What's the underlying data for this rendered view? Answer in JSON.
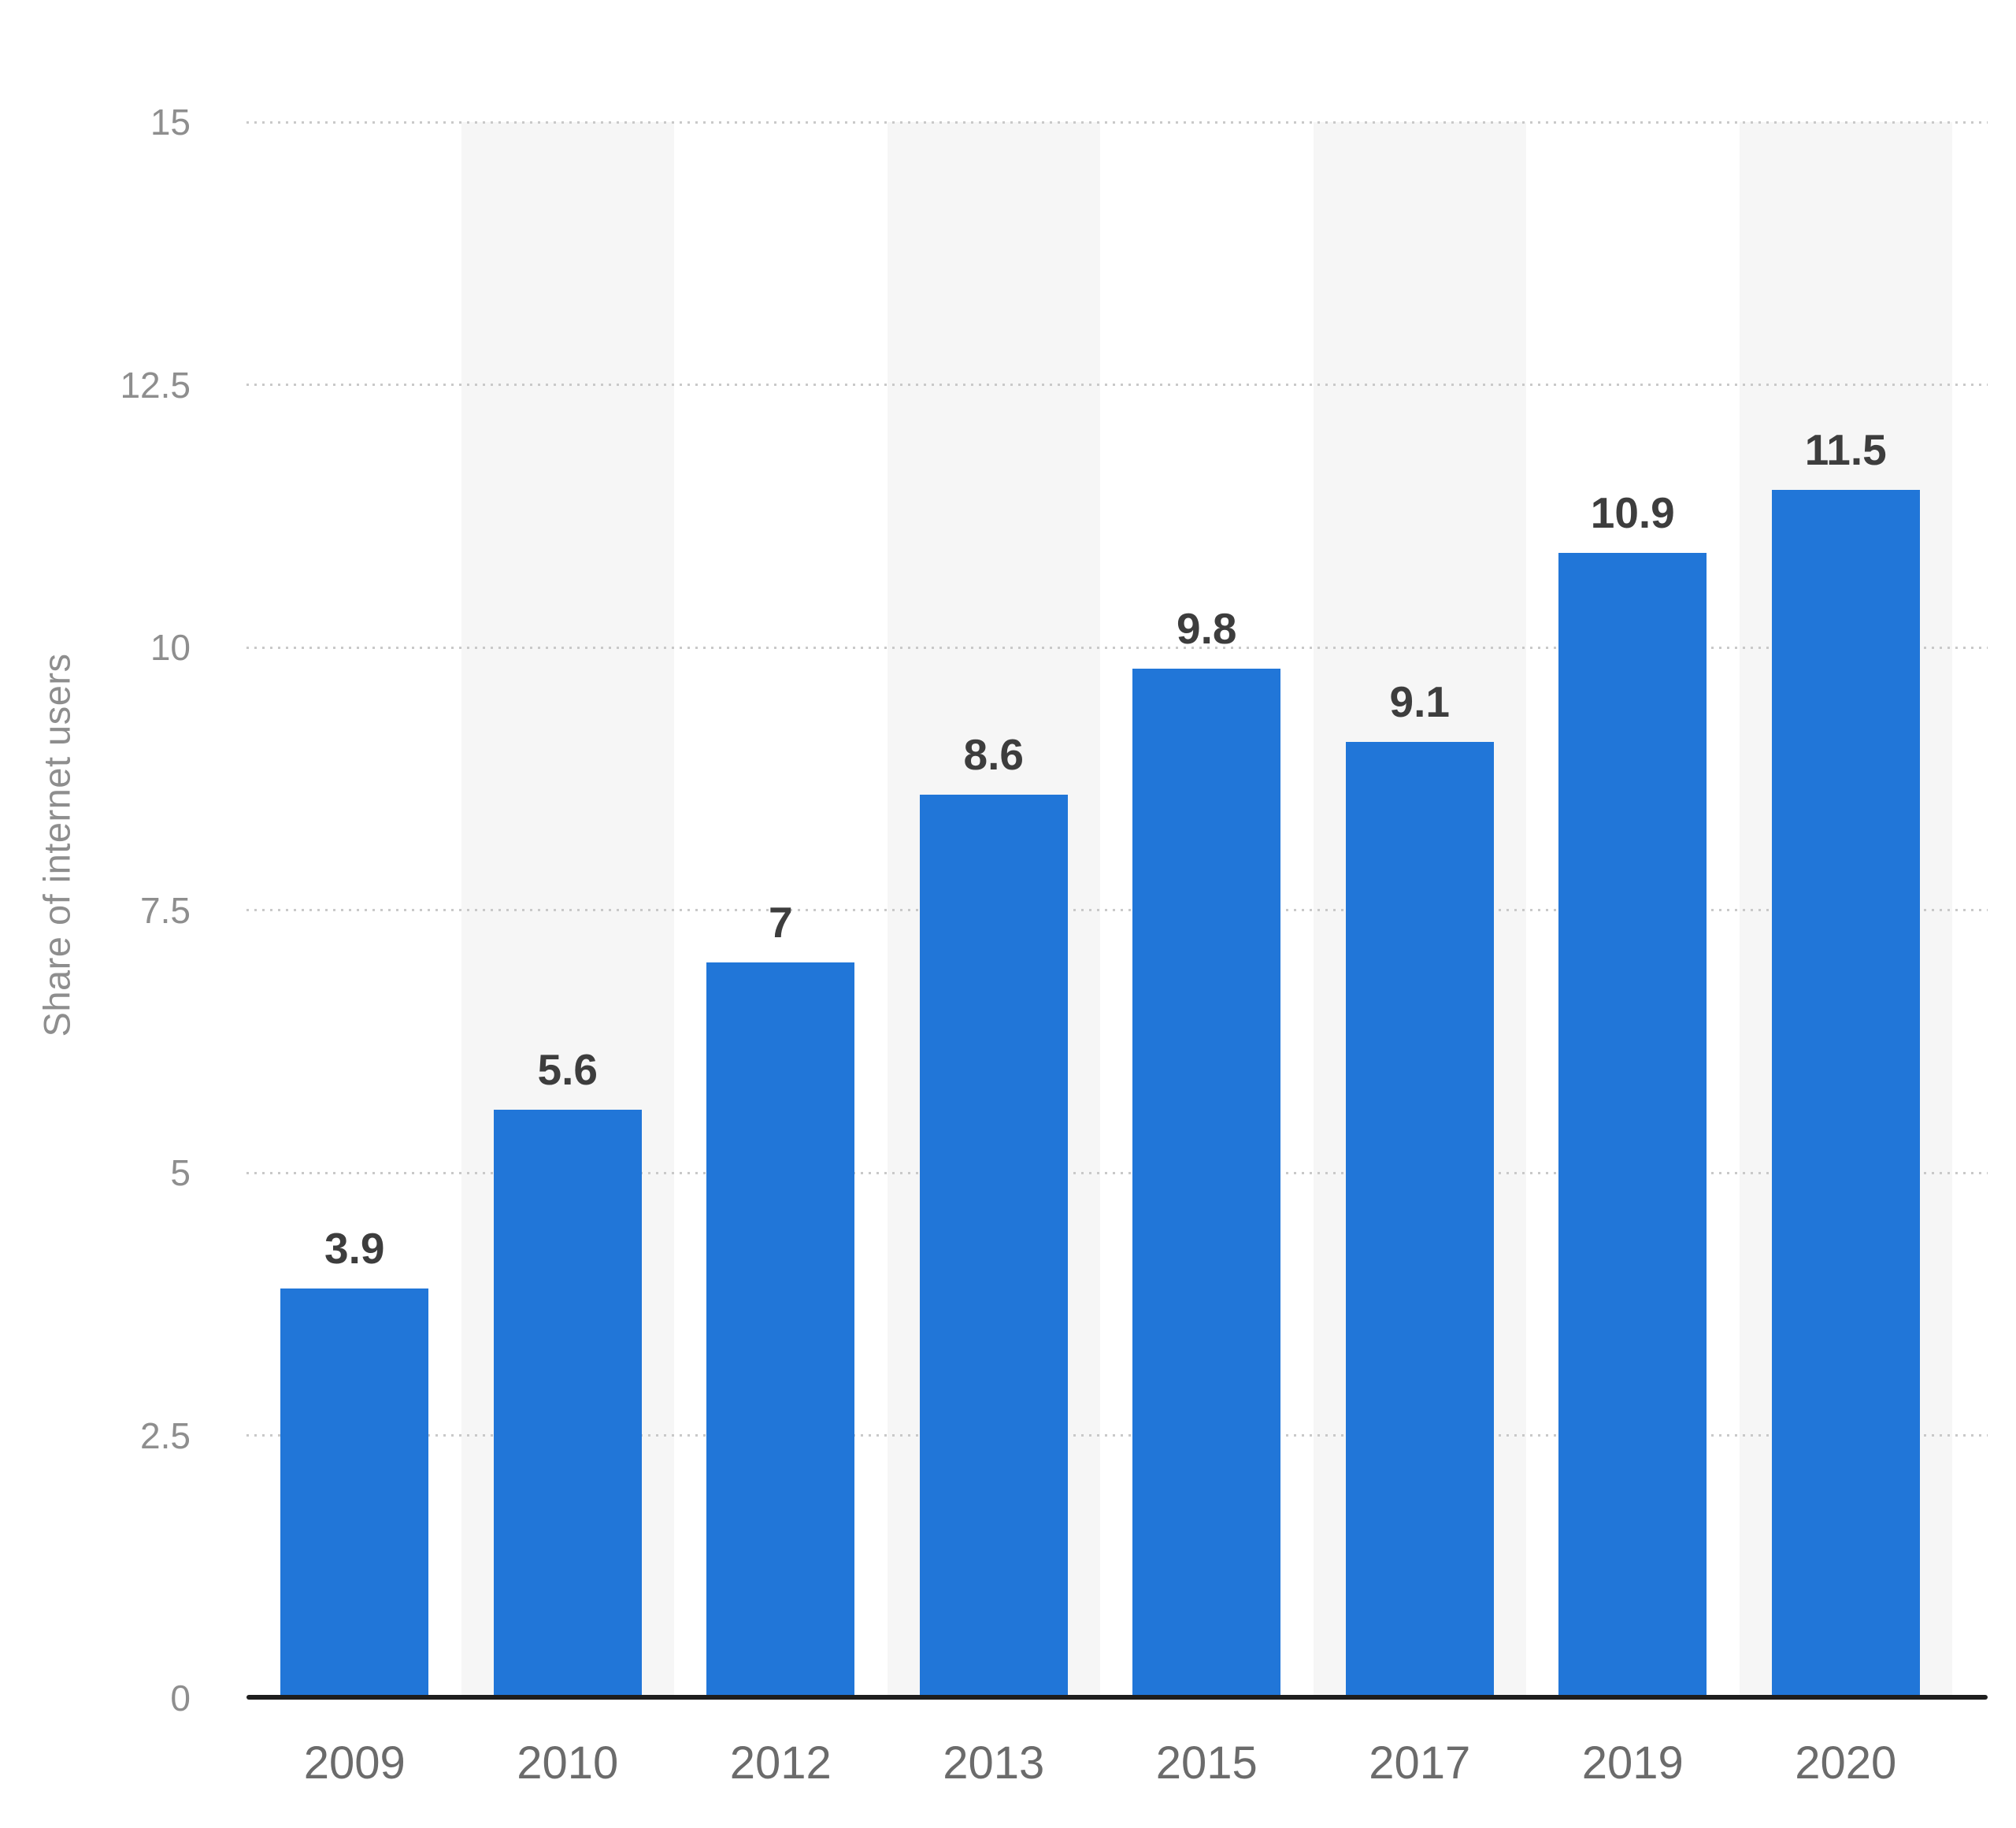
{
  "chart_data": {
    "type": "bar",
    "title": "",
    "xlabel": "",
    "ylabel": "Share of internet users",
    "categories": [
      "2009",
      "2010",
      "2012",
      "2013",
      "2015",
      "2017",
      "2019",
      "2020"
    ],
    "values": [
      3.9,
      5.6,
      7,
      8.6,
      9.8,
      9.1,
      10.9,
      11.5
    ],
    "value_labels": [
      "3.9",
      "5.6",
      "7",
      "8.6",
      "9.8",
      "9.1",
      "10.9",
      "11.5"
    ],
    "ylim": [
      0,
      15
    ],
    "yticks": [
      {
        "value": 0,
        "label": "0"
      },
      {
        "value": 2.5,
        "label": "2.5"
      },
      {
        "value": 5,
        "label": "5"
      },
      {
        "value": 7.5,
        "label": "7.5"
      },
      {
        "value": 10,
        "label": "10"
      },
      {
        "value": 12.5,
        "label": "12.5"
      },
      {
        "value": 15,
        "label": "15"
      }
    ],
    "grid": "horizontal dotted lines at each y tick, no vertical gridlines",
    "legend": "none",
    "plot_bands": {
      "style": "alternating vertical category background bands",
      "shaded_categories": [
        "2010",
        "2013",
        "2017",
        "2020"
      ]
    },
    "colors": {
      "bar": "#2176d8",
      "plot_band": "#f6f6f6",
      "gridline": "#c9c9c9",
      "axis_line": "#1e1e1e",
      "value_label": "#3d3d3d",
      "x_tick_label": "#6b6b6b",
      "y_tick_label": "#8e8e8e",
      "axis_title": "#8e8e8e",
      "background": "#ffffff"
    }
  }
}
